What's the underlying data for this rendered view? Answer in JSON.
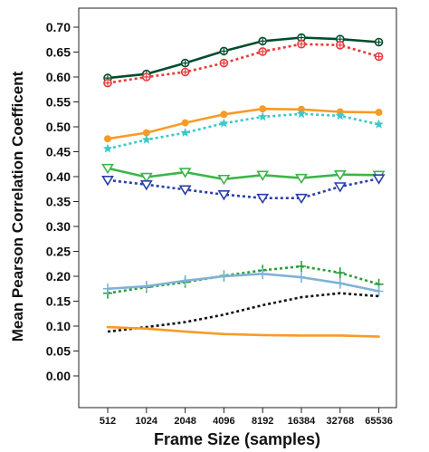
{
  "chart_data": {
    "type": "line",
    "xlabel": "Frame Size (samples)",
    "ylabel": "Mean Pearson Correlation Coefficent",
    "categories": [
      "512",
      "1024",
      "2048",
      "4096",
      "8192",
      "16384",
      "32768",
      "65536"
    ],
    "y_ticks": [
      "0.00",
      "0.05",
      "0.10",
      "0.15",
      "0.20",
      "0.25",
      "0.30",
      "0.35",
      "0.40",
      "0.45",
      "0.50",
      "0.55",
      "0.60",
      "0.65",
      "0.70"
    ],
    "ylim": [
      -0.02,
      0.73
    ],
    "grid": false,
    "series": [
      {
        "color": "#004d2e",
        "style": "solid",
        "marker": "circle-plus",
        "values": [
          0.598,
          0.606,
          0.628,
          0.652,
          0.672,
          0.679,
          0.676,
          0.67
        ]
      },
      {
        "color": "#e63b3b",
        "style": "dotted",
        "marker": "circle-plus",
        "values": [
          0.588,
          0.6,
          0.61,
          0.628,
          0.651,
          0.666,
          0.664,
          0.641
        ]
      },
      {
        "color": "#f79b28",
        "style": "solid",
        "marker": "dot",
        "values": [
          0.476,
          0.488,
          0.508,
          0.525,
          0.536,
          0.535,
          0.53,
          0.529
        ]
      },
      {
        "color": "#3cc8c8",
        "style": "dotted",
        "marker": "star",
        "values": [
          0.456,
          0.474,
          0.488,
          0.507,
          0.52,
          0.526,
          0.522,
          0.505
        ]
      },
      {
        "color": "#3cb54a",
        "style": "solid",
        "marker": "triangle-down",
        "values": [
          0.417,
          0.399,
          0.409,
          0.395,
          0.403,
          0.397,
          0.404,
          0.403
        ]
      },
      {
        "color": "#2a3fa8",
        "style": "dotted",
        "marker": "triangle-down",
        "values": [
          0.393,
          0.384,
          0.374,
          0.364,
          0.357,
          0.357,
          0.38,
          0.396
        ]
      },
      {
        "color": "#2a9e3c",
        "style": "dotted",
        "marker": "plus",
        "values": [
          0.166,
          0.178,
          0.188,
          0.201,
          0.212,
          0.22,
          0.207,
          0.184
        ]
      },
      {
        "color": "#7fb2d6",
        "style": "solid",
        "marker": "plus",
        "values": [
          0.175,
          0.18,
          0.191,
          0.2,
          0.205,
          0.198,
          0.186,
          0.17
        ]
      },
      {
        "color": "#111111",
        "style": "dotted",
        "marker": "none",
        "values": [
          0.089,
          0.098,
          0.108,
          0.123,
          0.142,
          0.158,
          0.166,
          0.16
        ]
      },
      {
        "color": "#f79b28",
        "style": "solid",
        "marker": "none",
        "values": [
          0.098,
          0.095,
          0.089,
          0.084,
          0.082,
          0.081,
          0.081,
          0.079
        ]
      }
    ]
  }
}
